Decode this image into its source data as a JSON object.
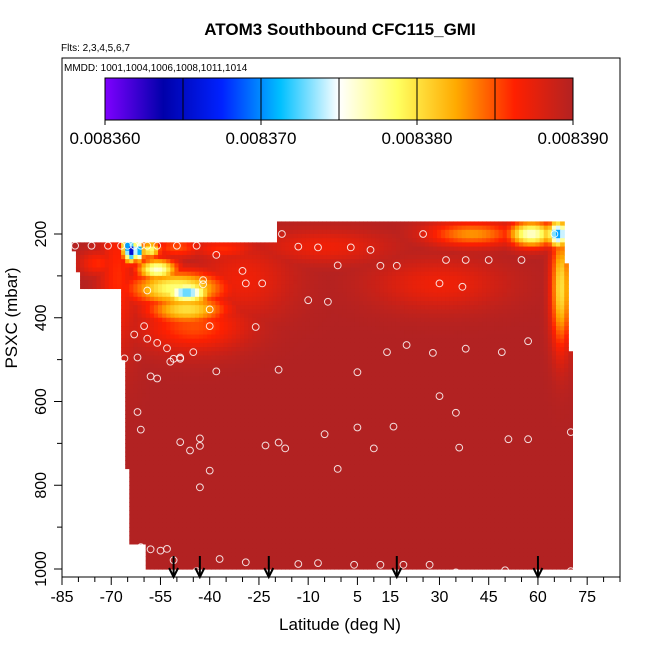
{
  "chart_data": {
    "type": "heatmap",
    "title": "ATOM3 Southbound CFC115_GMI",
    "flights_label": "Flts: 2,3,4,5,6,7",
    "mmdd_label": "MMDD: 1001,1004,1006,1008,1011,1014",
    "xlabel": "Latitude (deg N)",
    "ylabel": "PSXC (mbar)",
    "xlim": [
      -85,
      85
    ],
    "ylim": [
      1000,
      100
    ],
    "x_ticks": [
      -85,
      -70,
      -55,
      -40,
      -25,
      -10,
      5,
      15,
      30,
      45,
      60,
      75
    ],
    "y_ticks": [
      200,
      400,
      600,
      800,
      1000
    ],
    "colorbar": {
      "min": 0.00836,
      "max": 0.00839,
      "tick_values": [
        0.00836,
        0.00837,
        0.00838,
        0.00839
      ],
      "tick_labels": [
        "0.008360",
        "0.008370",
        "0.008380",
        "0.008390"
      ],
      "colors": [
        "#7f00ff",
        "#0000aa",
        "#0022ff",
        "#00c0ff",
        "#ffffff",
        "#ffff60",
        "#ffaa00",
        "#ff2000",
        "#b22222"
      ]
    },
    "background_value": 0.00839,
    "domain": {
      "lat_min": -68,
      "lat_max": 71,
      "south_top_pressure": 225,
      "north_top_pressure": 170,
      "north_top_start_lat": -19,
      "south_edge": [
        [
          -68,
          225
        ],
        [
          -67,
          400
        ],
        [
          -65.5,
          650
        ],
        [
          -64.5,
          940
        ],
        [
          -60,
          940
        ],
        [
          -60,
          1000
        ]
      ],
      "north_edge": [
        [
          68,
          170
        ],
        [
          68.5,
          250
        ],
        [
          70,
          500
        ],
        [
          71,
          700
        ],
        [
          71,
          1000
        ]
      ]
    },
    "anomalies": [
      {
        "lat": -65,
        "p": 230,
        "value": 0.00837,
        "lat_radius": 1.6,
        "p_radius": 35
      },
      {
        "lat": -63.5,
        "p": 240,
        "value": 0.008362,
        "lat_radius": 1.2,
        "p_radius": 25
      },
      {
        "lat": -61.5,
        "p": 240,
        "value": 0.00837,
        "lat_radius": 1.5,
        "p_radius": 25
      },
      {
        "lat": -58,
        "p": 238,
        "value": 0.008378,
        "lat_radius": 3,
        "p_radius": 20
      },
      {
        "lat": -50,
        "p": 232,
        "value": 0.008385,
        "lat_radius": 8,
        "p_radius": 25
      },
      {
        "lat": -36,
        "p": 235,
        "value": 0.008386,
        "lat_radius": 10,
        "p_radius": 25
      },
      {
        "lat": -74,
        "p": 270,
        "value": 0.008386,
        "lat_radius": 6,
        "p_radius": 30
      },
      {
        "lat": -56,
        "p": 285,
        "value": 0.008376,
        "lat_radius": 6,
        "p_radius": 25
      },
      {
        "lat": -47,
        "p": 340,
        "value": 0.008372,
        "lat_radius": 7,
        "p_radius": 25
      },
      {
        "lat": -50,
        "p": 330,
        "value": 0.008378,
        "lat_radius": 14,
        "p_radius": 40
      },
      {
        "lat": -47,
        "p": 380,
        "value": 0.00838,
        "lat_radius": 12,
        "p_radius": 35
      },
      {
        "lat": -45,
        "p": 420,
        "value": 0.008385,
        "lat_radius": 16,
        "p_radius": 60
      },
      {
        "lat": -30,
        "p": 310,
        "value": 0.008387,
        "lat_radius": 15,
        "p_radius": 90
      },
      {
        "lat": -5,
        "p": 230,
        "value": 0.008387,
        "lat_radius": 20,
        "p_radius": 40
      },
      {
        "lat": 40,
        "p": 200,
        "value": 0.008383,
        "lat_radius": 14,
        "p_radius": 30
      },
      {
        "lat": 58,
        "p": 200,
        "value": 0.008376,
        "lat_radius": 7,
        "p_radius": 30
      },
      {
        "lat": 66,
        "p": 200,
        "value": 0.00837,
        "lat_radius": 3,
        "p_radius": 30
      },
      {
        "lat": 67,
        "p": 330,
        "value": 0.00838,
        "lat_radius": 3,
        "p_radius": 140
      },
      {
        "lat": 30,
        "p": 320,
        "value": 0.008387,
        "lat_radius": 20,
        "p_radius": 60
      },
      {
        "lat": -68,
        "p": 300,
        "value": 0.008386,
        "lat_radius": 6,
        "p_radius": 180
      }
    ],
    "sample_points": [
      [
        -81,
        228
      ],
      [
        -76,
        228
      ],
      [
        -71,
        228
      ],
      [
        -67,
        228
      ],
      [
        -65,
        228
      ],
      [
        -63,
        228
      ],
      [
        -61,
        228
      ],
      [
        -59,
        228
      ],
      [
        -56,
        228
      ],
      [
        -50,
        228
      ],
      [
        -44,
        228
      ],
      [
        -38,
        250
      ],
      [
        -18,
        200
      ],
      [
        -13,
        230
      ],
      [
        -7,
        232
      ],
      [
        3,
        232
      ],
      [
        9,
        238
      ],
      [
        25,
        200
      ],
      [
        -30,
        288
      ],
      [
        -29,
        318
      ],
      [
        -24,
        318
      ],
      [
        -42,
        320
      ],
      [
        -10,
        358
      ],
      [
        -4,
        362
      ],
      [
        -1,
        275
      ],
      [
        12,
        276
      ],
      [
        17,
        276
      ],
      [
        32,
        262
      ],
      [
        38,
        262
      ],
      [
        45,
        262
      ],
      [
        55,
        262
      ],
      [
        65,
        200
      ],
      [
        -59,
        335
      ],
      [
        -42,
        310
      ],
      [
        30,
        318
      ],
      [
        37,
        326
      ],
      [
        -40,
        420
      ],
      [
        -40,
        380
      ],
      [
        -26,
        422
      ],
      [
        -60,
        420
      ],
      [
        -59,
        450
      ],
      [
        -63,
        440
      ],
      [
        -62,
        495
      ],
      [
        -56,
        460
      ],
      [
        -51,
        498
      ],
      [
        -49,
        495
      ],
      [
        -45,
        482
      ],
      [
        -66,
        497
      ],
      [
        -53,
        473
      ],
      [
        -52,
        505
      ],
      [
        -49,
        498
      ],
      [
        -58,
        540
      ],
      [
        -56,
        545
      ],
      [
        -19,
        524
      ],
      [
        5,
        530
      ],
      [
        20,
        465
      ],
      [
        14,
        482
      ],
      [
        28,
        484
      ],
      [
        38,
        474
      ],
      [
        49,
        482
      ],
      [
        57,
        456
      ],
      [
        -38,
        528
      ],
      [
        -62,
        625
      ],
      [
        -61,
        667
      ],
      [
        -49,
        697
      ],
      [
        -46,
        717
      ],
      [
        -43,
        688
      ],
      [
        -43,
        706
      ],
      [
        -40,
        765
      ],
      [
        -23,
        705
      ],
      [
        -19,
        698
      ],
      [
        -17,
        712
      ],
      [
        -5,
        678
      ],
      [
        -1,
        761
      ],
      [
        5,
        662
      ],
      [
        10,
        712
      ],
      [
        16,
        660
      ],
      [
        30,
        587
      ],
      [
        35,
        627
      ],
      [
        36,
        710
      ],
      [
        51,
        690
      ],
      [
        57,
        690
      ],
      [
        70,
        673
      ],
      [
        -43,
        805
      ],
      [
        -61,
        948
      ],
      [
        -58,
        953
      ],
      [
        -55,
        956
      ],
      [
        -53,
        952
      ],
      [
        -51,
        979
      ],
      [
        -44,
        1005
      ],
      [
        -37,
        976
      ],
      [
        -29,
        984
      ],
      [
        -13,
        988
      ],
      [
        -7,
        986
      ],
      [
        4,
        990
      ],
      [
        12,
        990
      ],
      [
        19,
        990
      ],
      [
        27,
        990
      ],
      [
        35,
        1008
      ],
      [
        50,
        1003
      ],
      [
        70,
        1005
      ]
    ],
    "flight_transition_lats": [
      -51,
      -43,
      -22,
      17,
      60
    ]
  }
}
